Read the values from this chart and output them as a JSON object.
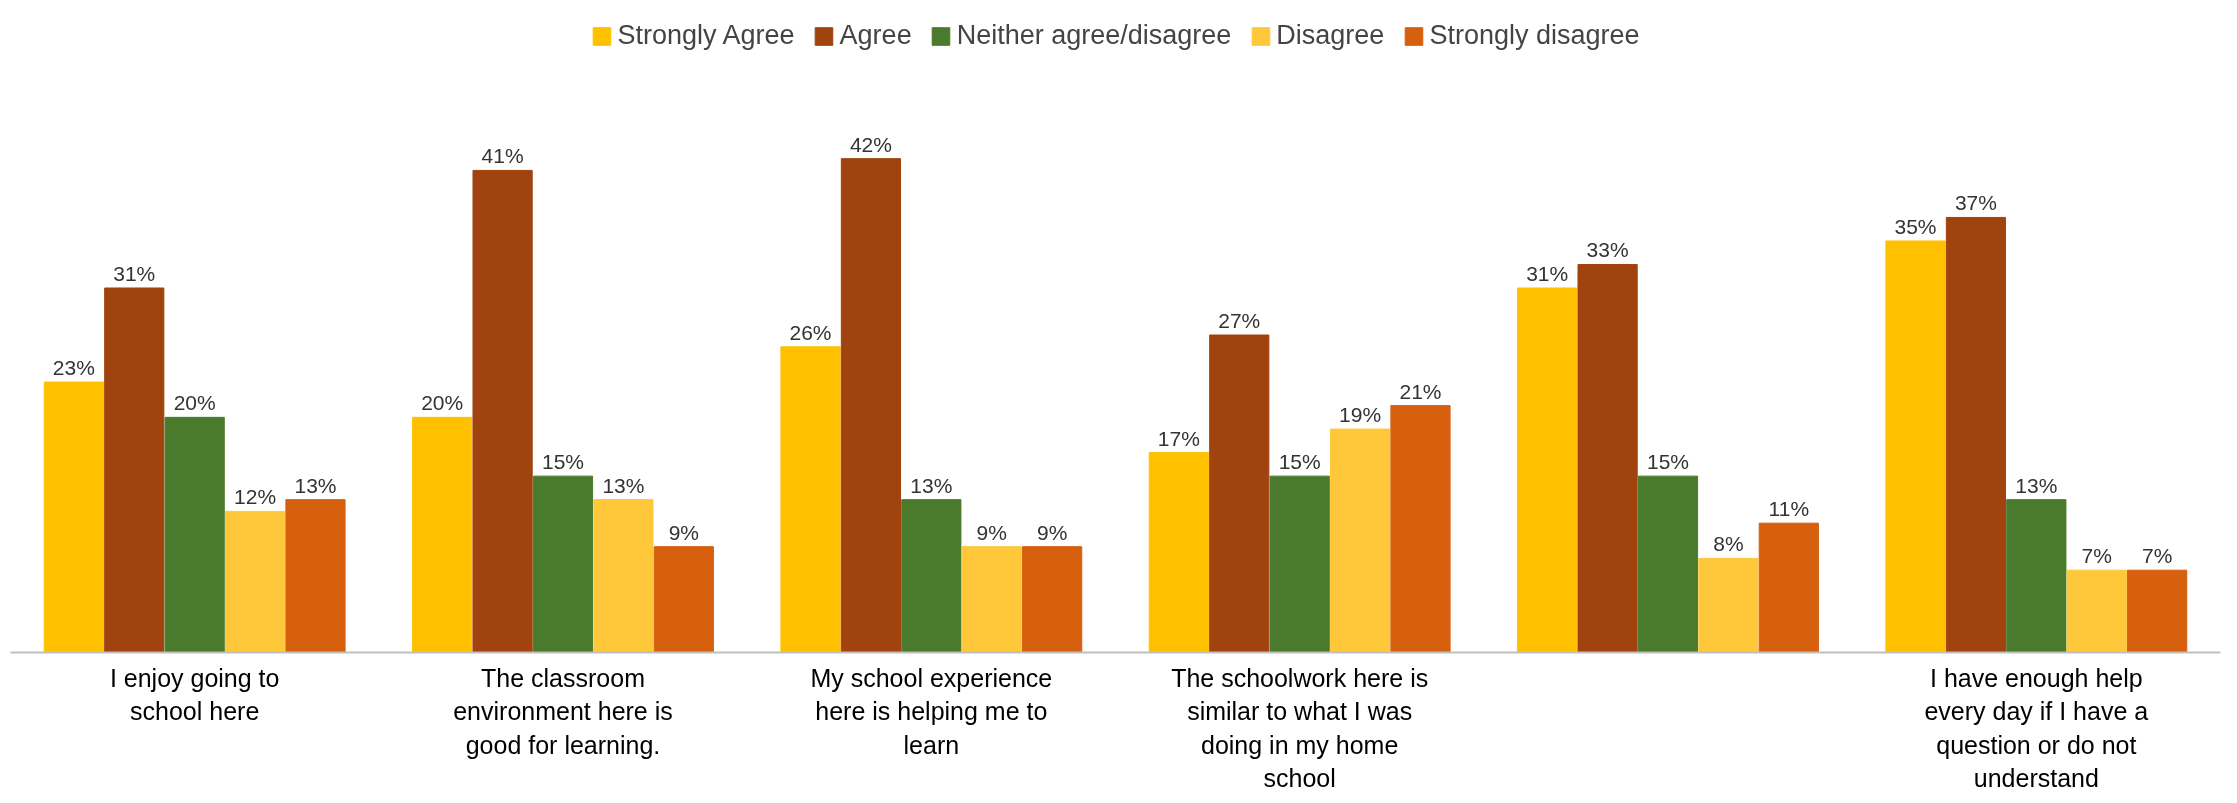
{
  "chart_data": {
    "type": "bar",
    "categories": [
      "I enjoy going to school here",
      "The classroom environment here is good for learning.",
      "My school experience here is helping me to learn",
      "The schoolwork here is similar to what I was doing in my home school",
      null,
      "I have enough help every day if I have a question or do not understand"
    ],
    "series": [
      {
        "name": "Strongly Agree",
        "color": "#ffc000",
        "values": [
          23,
          20,
          26,
          17,
          31,
          35
        ],
        "value_labels": [
          "23%",
          "20%",
          "26%",
          "17%",
          "31%",
          "35%"
        ]
      },
      {
        "name": "Agree",
        "color": "#a0430e",
        "values": [
          31,
          41,
          42,
          27,
          33,
          37
        ],
        "value_labels": [
          "31%",
          "41%",
          "42%",
          "27%",
          "33%",
          "37%"
        ]
      },
      {
        "name": "Neither agree/disagree",
        "color": "#4a7a2c",
        "values": [
          20,
          15,
          13,
          15,
          15,
          13
        ],
        "value_labels": [
          "20%",
          "15%",
          "13%",
          "15%",
          "15%",
          "13%"
        ]
      },
      {
        "name": "Disagree",
        "color": "#ffc83a",
        "values": [
          12,
          13,
          9,
          19,
          8,
          7
        ],
        "value_labels": [
          "12%",
          "13%",
          "9%",
          "19%",
          "8%",
          "7%"
        ]
      },
      {
        "name": "Strongly disagree",
        "color": "#d6600e",
        "values": [
          13,
          9,
          9,
          21,
          11,
          7
        ],
        "value_labels": [
          "13%",
          "9%",
          "9%",
          "21%",
          "11%",
          "7%"
        ]
      }
    ],
    "legend": "top",
    "grid": false
  }
}
